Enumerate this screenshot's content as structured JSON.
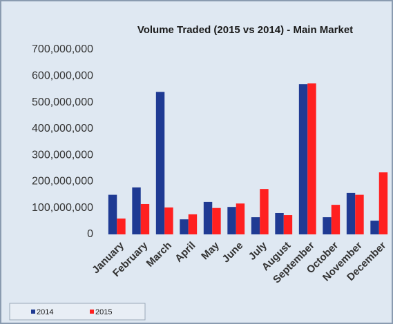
{
  "chart_data": {
    "type": "bar",
    "title": "Volume Traded (2015 vs 2014) - Main Market",
    "categories": [
      "January",
      "February",
      "March",
      "April",
      "May",
      "June",
      "July",
      "August",
      "September",
      "October",
      "November",
      "December"
    ],
    "series": [
      {
        "name": "2014",
        "color": "#1f3a93",
        "values": [
          150000000,
          178000000,
          540000000,
          57000000,
          123000000,
          104000000,
          65000000,
          81000000,
          569000000,
          65000000,
          157000000,
          52000000
        ]
      },
      {
        "name": "2015",
        "color": "#ff2020",
        "values": [
          60000000,
          115000000,
          102000000,
          76000000,
          100000000,
          117000000,
          172000000,
          73000000,
          572000000,
          112000000,
          150000000,
          235000000
        ]
      }
    ],
    "ylim": [
      0,
      700000000
    ],
    "yticks": [
      0,
      {
        "value": 100000000,
        "label": "100,000,000"
      },
      {
        "value": 200000000,
        "label": "200,000,000"
      },
      {
        "value": 300000000,
        "label": "300,000,000"
      },
      {
        "value": 400000000,
        "label": "400,000,000"
      },
      {
        "value": 500000000,
        "label": "500,000,000"
      },
      {
        "value": 600000000,
        "label": "600,000,000"
      },
      {
        "value": 700000000,
        "label": "700,000,000"
      }
    ],
    "grid": false,
    "legend": "bottom-left"
  }
}
